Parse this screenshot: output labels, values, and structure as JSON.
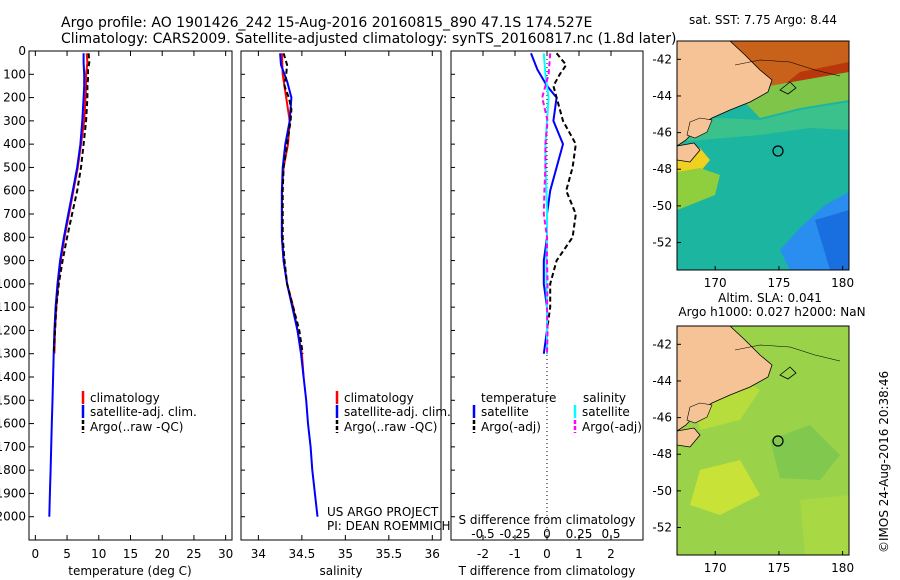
{
  "figure": {
    "title_line1": "Argo profile: AO 1901426_242 15-Aug-2016 20160815_890 47.1S 174.527E",
    "title_line2": "Climatology: CARS2009. Satellite-adjusted climatology: synTS_20160817.nc (1.8d later)",
    "credit_line1": "US ARGO PROJECT",
    "credit_line2": "PI: DEAN ROEMMICH",
    "stamp": "©IMOS 24-Aug-2016 20:38:46"
  },
  "colors": {
    "climatology": "#ff0000",
    "satellite": "#0000ff",
    "argo": "#000000",
    "salinity_satellite": "#00ffff",
    "salinity_argo": "#ff00ff",
    "land": "#f5c396"
  },
  "legends": {
    "temp": [
      "climatology",
      "satellite-adj. clim.",
      "Argo(..raw -QC)"
    ],
    "sal": [
      "climatology",
      "satellite-adj. clim.",
      "Argo(..raw -QC)"
    ],
    "diff_head_left": "temperature",
    "diff_head_right": "salinity",
    "diff_left": [
      "satellite",
      "Argo(-adj)"
    ],
    "diff_right": [
      "satellite",
      "Argo(-adj)"
    ]
  },
  "maps": {
    "sst_title": "sat. SST: 7.75 Argo: 8.44",
    "sla_title_line1": "Altim. SLA: 0.041",
    "sla_title_line2": "Argo h1000: 0.027 h2000: NaN",
    "lon_ticks": [
      "170",
      "175",
      "180"
    ],
    "lat_ticks": [
      "-42",
      "-44",
      "-46",
      "-48",
      "-50",
      "-52"
    ]
  },
  "chart_data": [
    {
      "type": "line",
      "panel": "temperature",
      "xlabel": "temperature (deg C)",
      "ylabel": "",
      "xlim": [
        -1,
        31
      ],
      "ylim": [
        2100,
        0
      ],
      "xticks": [
        0,
        5,
        10,
        15,
        20,
        25,
        30
      ],
      "yticks": [
        0,
        100,
        200,
        300,
        400,
        500,
        600,
        700,
        800,
        900,
        1000,
        1100,
        1200,
        1300,
        1400,
        1500,
        1600,
        1700,
        1800,
        1900,
        2000
      ],
      "series": [
        {
          "name": "climatology",
          "color": "#ff0000",
          "dash": "none",
          "points": [
            [
              8.1,
              10
            ],
            [
              8.2,
              50
            ],
            [
              8.0,
              100
            ],
            [
              8.0,
              150
            ],
            [
              7.9,
              200
            ],
            [
              7.7,
              300
            ],
            [
              7.2,
              400
            ],
            [
              6.7,
              500
            ],
            [
              6.0,
              600
            ],
            [
              5.3,
              700
            ],
            [
              4.6,
              800
            ],
            [
              4.0,
              900
            ],
            [
              3.6,
              1000
            ],
            [
              3.3,
              1100
            ],
            [
              3.1,
              1200
            ],
            [
              3.0,
              1300
            ]
          ]
        },
        {
          "name": "satellite-adj. clim.",
          "color": "#0000ff",
          "dash": "none",
          "points": [
            [
              7.6,
              10
            ],
            [
              7.6,
              50
            ],
            [
              7.7,
              100
            ],
            [
              7.7,
              150
            ],
            [
              7.6,
              200
            ],
            [
              7.4,
              300
            ],
            [
              7.1,
              400
            ],
            [
              6.6,
              500
            ],
            [
              5.9,
              600
            ],
            [
              5.2,
              700
            ],
            [
              4.5,
              800
            ],
            [
              3.9,
              900
            ],
            [
              3.5,
              1000
            ],
            [
              3.2,
              1100
            ],
            [
              3.0,
              1200
            ],
            [
              2.9,
              1300
            ],
            [
              2.8,
              1400
            ],
            [
              2.7,
              1500
            ],
            [
              2.6,
              1600
            ],
            [
              2.5,
              1700
            ],
            [
              2.4,
              1800
            ],
            [
              2.3,
              1900
            ],
            [
              2.2,
              2000
            ]
          ]
        },
        {
          "name": "Argo(..raw -QC)",
          "color": "#000000",
          "dash": "5,3",
          "points": [
            [
              8.4,
              10
            ],
            [
              8.5,
              50
            ],
            [
              8.3,
              80
            ],
            [
              8.3,
              120
            ],
            [
              8.2,
              150
            ],
            [
              8.2,
              200
            ],
            [
              8.0,
              300
            ],
            [
              7.6,
              400
            ],
            [
              7.2,
              500
            ],
            [
              6.6,
              600
            ],
            [
              5.8,
              700
            ],
            [
              5.0,
              800
            ],
            [
              4.3,
              900
            ],
            [
              3.7,
              1000
            ],
            [
              3.3,
              1100
            ],
            [
              3.1,
              1200
            ],
            [
              2.9,
              1300
            ]
          ]
        }
      ]
    },
    {
      "type": "line",
      "panel": "salinity",
      "xlabel": "salinity",
      "ylabel": "",
      "xlim": [
        33.8,
        36.1
      ],
      "ylim": [
        2100,
        0
      ],
      "xticks": [
        34,
        34.5,
        35,
        35.5,
        36
      ],
      "series": [
        {
          "name": "climatology",
          "color": "#ff0000",
          "dash": "none",
          "points": [
            [
              34.27,
              10
            ],
            [
              34.28,
              100
            ],
            [
              34.32,
              200
            ],
            [
              34.36,
              300
            ],
            [
              34.34,
              400
            ],
            [
              34.29,
              500
            ],
            [
              34.27,
              600
            ],
            [
              34.27,
              700
            ],
            [
              34.27,
              800
            ],
            [
              34.29,
              900
            ],
            [
              34.33,
              1000
            ],
            [
              34.4,
              1100
            ],
            [
              34.45,
              1200
            ],
            [
              34.5,
              1300
            ],
            [
              34.52,
              1400
            ]
          ]
        },
        {
          "name": "satellite-adj. clim.",
          "color": "#0000ff",
          "dash": "none",
          "points": [
            [
              34.25,
              10
            ],
            [
              34.26,
              60
            ],
            [
              34.33,
              130
            ],
            [
              34.38,
              200
            ],
            [
              34.36,
              300
            ],
            [
              34.31,
              400
            ],
            [
              34.28,
              500
            ],
            [
              34.27,
              600
            ],
            [
              34.27,
              700
            ],
            [
              34.27,
              800
            ],
            [
              34.29,
              900
            ],
            [
              34.33,
              1000
            ],
            [
              34.39,
              1100
            ],
            [
              34.45,
              1200
            ],
            [
              34.49,
              1300
            ],
            [
              34.52,
              1400
            ],
            [
              34.55,
              1500
            ],
            [
              34.57,
              1600
            ],
            [
              34.6,
              1700
            ],
            [
              34.62,
              1800
            ],
            [
              34.65,
              1900
            ],
            [
              34.68,
              2000
            ]
          ]
        },
        {
          "name": "Argo(..raw -QC)",
          "color": "#000000",
          "dash": "5,3",
          "points": [
            [
              34.29,
              10
            ],
            [
              34.33,
              60
            ],
            [
              34.32,
              100
            ],
            [
              34.3,
              150
            ],
            [
              34.35,
              200
            ],
            [
              34.38,
              250
            ],
            [
              34.37,
              300
            ],
            [
              34.33,
              400
            ],
            [
              34.29,
              500
            ],
            [
              34.28,
              600
            ],
            [
              34.28,
              700
            ],
            [
              34.28,
              800
            ],
            [
              34.3,
              900
            ],
            [
              34.33,
              1000
            ],
            [
              34.4,
              1100
            ],
            [
              34.47,
              1200
            ],
            [
              34.51,
              1300
            ]
          ]
        }
      ]
    },
    {
      "type": "line",
      "panel": "difference",
      "xlabel": "T difference from climatology",
      "xlabel_top": "S difference from climatology",
      "ylabel": "",
      "xlim": [
        -3,
        3
      ],
      "ylim": [
        2100,
        0
      ],
      "xticks": [
        -2,
        -1,
        0,
        1,
        2
      ],
      "xticks_top": [
        "-0.5",
        "-0.25",
        "0",
        "0.25",
        "0.5"
      ],
      "series": [
        {
          "name": "temperature satellite",
          "color": "#0000ff",
          "dash": "none",
          "points": [
            [
              -0.5,
              10
            ],
            [
              -0.3,
              80
            ],
            [
              0.0,
              150
            ],
            [
              0.3,
              200
            ],
            [
              0.2,
              300
            ],
            [
              0.5,
              400
            ],
            [
              0.3,
              500
            ],
            [
              0.1,
              600
            ],
            [
              0.0,
              700
            ],
            [
              0.0,
              800
            ],
            [
              -0.1,
              900
            ],
            [
              -0.1,
              1000
            ],
            [
              0.0,
              1100
            ],
            [
              0.0,
              1200
            ],
            [
              -0.1,
              1300
            ]
          ]
        },
        {
          "name": "temperature Argo(-adj)",
          "color": "#000000",
          "dash": "5,3",
          "points": [
            [
              0.3,
              10
            ],
            [
              0.6,
              60
            ],
            [
              0.4,
              100
            ],
            [
              0.2,
              150
            ],
            [
              0.3,
              200
            ],
            [
              0.5,
              300
            ],
            [
              0.9,
              400
            ],
            [
              0.8,
              500
            ],
            [
              0.6,
              600
            ],
            [
              0.9,
              700
            ],
            [
              0.8,
              800
            ],
            [
              0.3,
              900
            ],
            [
              0.1,
              1000
            ],
            [
              0.1,
              1100
            ],
            [
              0.0,
              1200
            ],
            [
              0.0,
              1300
            ]
          ]
        },
        {
          "name": "salinity satellite",
          "color": "#00ffff",
          "dash": "none",
          "points": [
            [
              -0.1,
              10
            ],
            [
              -0.05,
              100
            ],
            [
              0.05,
              200
            ],
            [
              0.0,
              300
            ],
            [
              -0.05,
              400
            ],
            [
              -0.05,
              500
            ],
            [
              -0.02,
              600
            ],
            [
              0.0,
              700
            ],
            [
              0.0,
              800
            ],
            [
              -0.02,
              900
            ],
            [
              -0.02,
              1000
            ],
            [
              0.0,
              1100
            ],
            [
              0.0,
              1200
            ],
            [
              0.0,
              1300
            ]
          ]
        },
        {
          "name": "salinity Argo(-adj)",
          "color": "#ff00ff",
          "dash": "5,3",
          "points": [
            [
              0.1,
              10
            ],
            [
              0.05,
              100
            ],
            [
              -0.15,
              200
            ],
            [
              0.02,
              300
            ],
            [
              -0.05,
              400
            ],
            [
              -0.05,
              500
            ],
            [
              -0.08,
              600
            ],
            [
              -0.1,
              700
            ],
            [
              0.0,
              800
            ],
            [
              0.0,
              900
            ],
            [
              0.02,
              1000
            ],
            [
              0.0,
              1100
            ],
            [
              0.02,
              1200
            ],
            [
              0.0,
              1300
            ]
          ]
        }
      ]
    }
  ]
}
